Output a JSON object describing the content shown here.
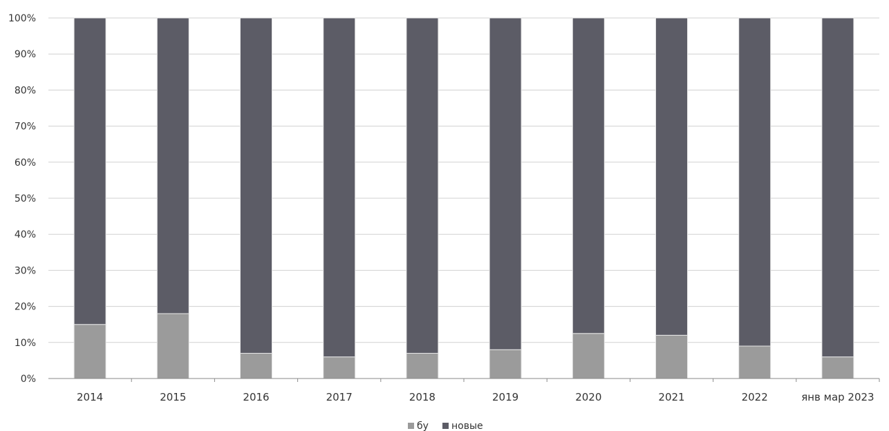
{
  "chart_data": {
    "type": "bar",
    "stacked": true,
    "normalized_percent": true,
    "categories": [
      "2014",
      "2015",
      "2016",
      "2017",
      "2018",
      "2019",
      "2020",
      "2021",
      "2022",
      "янв мар 2023"
    ],
    "series": [
      {
        "name": "бу",
        "color": "#9b9b9b",
        "values": [
          15,
          18,
          7,
          6,
          7,
          8,
          12.5,
          12,
          9,
          6
        ]
      },
      {
        "name": "новые",
        "color": "#5c5c66",
        "values": [
          85,
          82,
          93,
          94,
          93,
          92,
          87.5,
          88,
          91,
          94
        ]
      }
    ],
    "yticks": [
      "0%",
      "10%",
      "20%",
      "30%",
      "40%",
      "50%",
      "60%",
      "70%",
      "80%",
      "90%",
      "100%"
    ],
    "ylim": [
      0,
      100
    ],
    "grid": true,
    "legend": "bottom-center"
  }
}
